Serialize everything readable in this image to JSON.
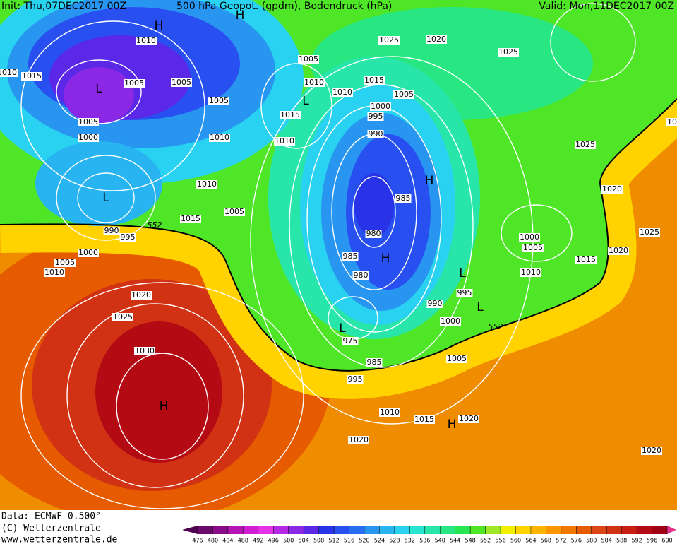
{
  "header": {
    "init": "Init: Thu,07DEC2017 00Z",
    "title": "500 hPa Geopot. (gpdm), Bodendruck (hPa)",
    "valid": "Valid: Mon,11DEC2017 00Z"
  },
  "isobar_labels": [
    "1010",
    "1015",
    "1005",
    "1005",
    "1005",
    "1005",
    "1010",
    "1010",
    "1015",
    "1025",
    "1020",
    "1025",
    "1005",
    "1000",
    "995",
    "990",
    "1015",
    "1010",
    "1010",
    "1005",
    "1000",
    "1010",
    "1005",
    "1015",
    "990",
    "995",
    "1000",
    "1005",
    "1010",
    "1020",
    "1025",
    "1030",
    "985",
    "980",
    "985",
    "980",
    "975",
    "985",
    "995",
    "1025",
    "1020",
    "1025",
    "1020",
    "1015",
    "1000",
    "1005",
    "1010",
    "995",
    "990",
    "1000",
    "1005",
    "1010",
    "1015",
    "1020",
    "1020",
    "1020",
    "1010",
    "10"
  ],
  "geopotential_labels": [
    "552",
    "552"
  ],
  "pressure_centers": [
    "H",
    "H",
    "L",
    "L",
    "L",
    "H",
    "H",
    "L",
    "L",
    "L",
    "H",
    "H"
  ],
  "footer": {
    "data": "Data: ECMWF   0.500°",
    "copyright": "(C) Wetterzentrale",
    "url": "www.wetterzentrale.de"
  },
  "colorbar": {
    "ticks": [
      476,
      480,
      484,
      488,
      492,
      496,
      500,
      504,
      508,
      512,
      516,
      520,
      524,
      528,
      532,
      536,
      540,
      544,
      548,
      552,
      556,
      560,
      564,
      568,
      572,
      576,
      580,
      584,
      588,
      592,
      596,
      600
    ],
    "colors": [
      "#6a0a6a",
      "#8a0e8a",
      "#b414b4",
      "#d21ed2",
      "#e632e6",
      "#b428e6",
      "#8a28e6",
      "#5a28e6",
      "#2832e6",
      "#2850f0",
      "#286ef0",
      "#2896f0",
      "#28b4f0",
      "#28d2f0",
      "#28e6d2",
      "#28e6aa",
      "#28e682",
      "#28e650",
      "#50e628",
      "#a0e628",
      "#f0f000",
      "#ffd200",
      "#ffb400",
      "#ff9600",
      "#f07800",
      "#e65a00",
      "#dc4614",
      "#d23214",
      "#c81e14",
      "#b40a14",
      "#a00014"
    ],
    "low_color": "#500050",
    "high_color": "#e6328c"
  }
}
